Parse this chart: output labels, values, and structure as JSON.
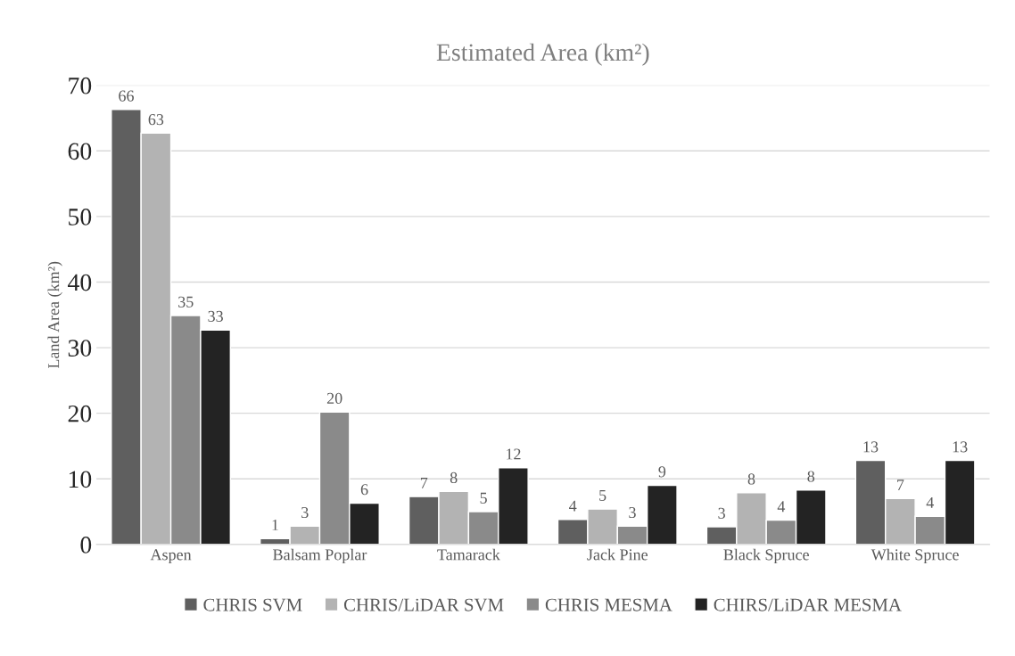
{
  "chart_data": {
    "type": "bar",
    "title": "Estimated Area (km²)",
    "ylabel": "Land Area (km²)",
    "categories": [
      "Aspen",
      "Balsam Poplar",
      "Tamarack",
      "Jack Pine",
      "Black Spruce",
      "White Spruce"
    ],
    "series": [
      {
        "name": "CHRIS SVM",
        "color": "#5f5f5f",
        "values": [
          66.3,
          0.9,
          7.3,
          3.8,
          2.7,
          12.8
        ],
        "value_labels": [
          "66",
          "1",
          "7",
          "4",
          "3",
          "13"
        ]
      },
      {
        "name": "CHRIS/LiDAR SVM",
        "color": "#b3b3b3",
        "values": [
          62.7,
          2.8,
          8.1,
          5.4,
          7.9,
          7.0
        ],
        "value_labels": [
          "63",
          "3",
          "8",
          "5",
          "8",
          "7"
        ]
      },
      {
        "name": "CHRIS MESMA",
        "color": "#8a8a8a",
        "values": [
          34.9,
          20.2,
          5.0,
          2.8,
          3.7,
          4.3
        ],
        "value_labels": [
          "35",
          "20",
          "5",
          "3",
          "4",
          "4"
        ]
      },
      {
        "name": "CHIRS/LiDAR MESMA",
        "color": "#232323",
        "values": [
          32.7,
          6.3,
          11.7,
          9.0,
          8.3,
          12.8
        ],
        "value_labels": [
          "33",
          "6",
          "12",
          "9",
          "8",
          "13"
        ]
      }
    ],
    "ylim": [
      0,
      70
    ],
    "yticks": [
      0,
      10,
      20,
      30,
      40,
      50,
      60,
      70
    ],
    "grid": "y",
    "legend": "bottom"
  }
}
